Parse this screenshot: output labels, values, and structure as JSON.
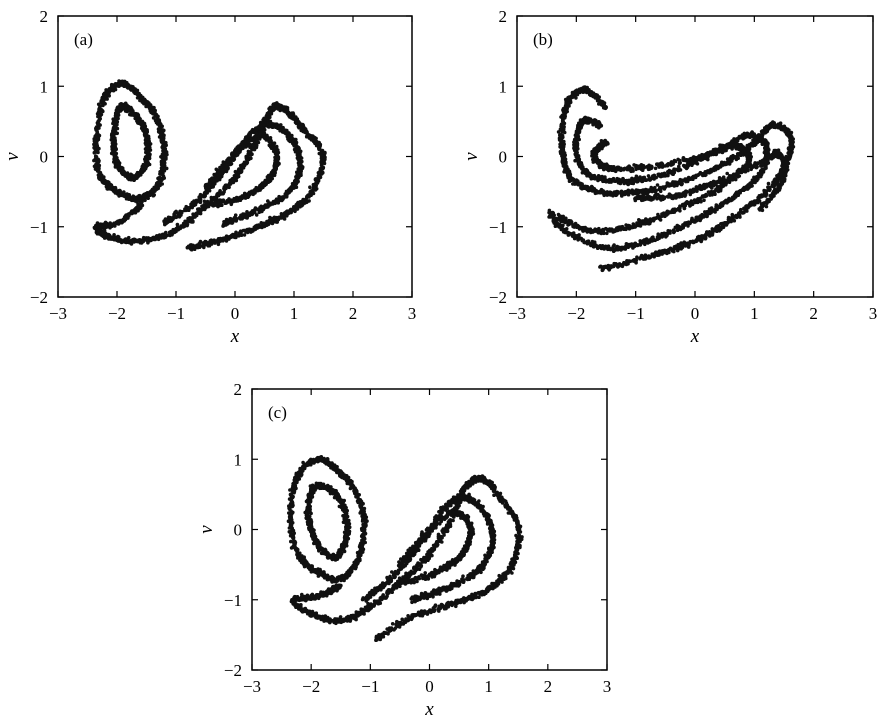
{
  "chart_data": [
    {
      "type": "scatter",
      "panel_label": "(a)",
      "xlabel": "x",
      "ylabel": "v",
      "xlim": [
        -3,
        3
      ],
      "ylim": [
        -2,
        2
      ],
      "xticks": [
        "−3",
        "−2",
        "−1",
        "0",
        "1",
        "2",
        "3"
      ],
      "yticks": [
        "−2",
        "−1",
        "0",
        "1",
        "2"
      ],
      "grid": false,
      "color": "#111111",
      "attractor_curves": [
        {
          "loop": true,
          "points": [
            [
              -1.55,
              0.8
            ],
            [
              -1.9,
              1.04
            ],
            [
              -2.2,
              0.85
            ],
            [
              -2.35,
              0.3
            ],
            [
              -2.3,
              -0.25
            ],
            [
              -2.0,
              -0.5
            ],
            [
              -1.6,
              -0.6
            ],
            [
              -1.3,
              -0.4
            ],
            [
              -1.2,
              0.0
            ],
            [
              -1.3,
              0.5
            ]
          ]
        },
        {
          "loop": true,
          "points": [
            [
              -1.7,
              0.6
            ],
            [
              -1.95,
              0.7
            ],
            [
              -2.05,
              0.3
            ],
            [
              -2.0,
              -0.1
            ],
            [
              -1.75,
              -0.3
            ],
            [
              -1.5,
              -0.1
            ],
            [
              -1.5,
              0.3
            ]
          ]
        },
        {
          "loop": false,
          "points": [
            [
              -1.6,
              -0.7
            ],
            [
              -2.0,
              -0.95
            ],
            [
              -2.35,
              -1.0
            ],
            [
              -2.1,
              -1.15
            ],
            [
              -1.6,
              -1.2
            ],
            [
              -1.0,
              -1.05
            ],
            [
              -0.5,
              -0.7
            ],
            [
              0.0,
              -0.3
            ],
            [
              0.35,
              0.2
            ],
            [
              0.6,
              0.65
            ],
            [
              0.8,
              0.7
            ],
            [
              1.15,
              0.4
            ],
            [
              1.5,
              0.0
            ],
            [
              1.3,
              -0.5
            ],
            [
              0.9,
              -0.8
            ],
            [
              0.4,
              -1.0
            ],
            [
              -0.3,
              -1.2
            ],
            [
              -0.8,
              -1.3
            ]
          ]
        },
        {
          "loop": false,
          "points": [
            [
              -1.2,
              -0.95
            ],
            [
              -0.6,
              -0.6
            ],
            [
              -0.1,
              -0.1
            ],
            [
              0.3,
              0.35
            ],
            [
              0.65,
              0.45
            ],
            [
              1.0,
              0.2
            ],
            [
              1.1,
              -0.2
            ],
            [
              0.85,
              -0.55
            ],
            [
              0.3,
              -0.8
            ],
            [
              -0.2,
              -0.95
            ]
          ]
        },
        {
          "loop": false,
          "points": [
            [
              -0.5,
              -0.45
            ],
            [
              0.0,
              0.05
            ],
            [
              0.45,
              0.3
            ],
            [
              0.7,
              0.05
            ],
            [
              0.6,
              -0.3
            ],
            [
              0.2,
              -0.55
            ],
            [
              -0.4,
              -0.7
            ]
          ]
        }
      ]
    },
    {
      "type": "scatter",
      "panel_label": "(b)",
      "xlabel": "x",
      "ylabel": "v",
      "xlim": [
        -3,
        3
      ],
      "ylim": [
        -2,
        2
      ],
      "xticks": [
        "−3",
        "−2",
        "−1",
        "0",
        "1",
        "2",
        "3"
      ],
      "yticks": [
        "−2",
        "−1",
        "0",
        "1",
        "2"
      ],
      "grid": false,
      "color": "#111111",
      "attractor_curves": [
        {
          "loop": false,
          "points": [
            [
              -1.5,
              0.7
            ],
            [
              -1.85,
              0.95
            ],
            [
              -2.15,
              0.75
            ],
            [
              -2.25,
              0.2
            ],
            [
              -2.1,
              -0.3
            ],
            [
              -1.6,
              -0.5
            ],
            [
              -0.9,
              -0.5
            ],
            [
              -0.2,
              -0.35
            ],
            [
              0.5,
              -0.1
            ],
            [
              1.0,
              0.2
            ],
            [
              1.3,
              0.45
            ],
            [
              1.6,
              0.3
            ],
            [
              1.55,
              -0.1
            ],
            [
              1.2,
              -0.5
            ],
            [
              0.6,
              -0.9
            ],
            [
              0.0,
              -1.2
            ],
            [
              -0.7,
              -1.4
            ],
            [
              -1.6,
              -1.6
            ]
          ]
        },
        {
          "loop": false,
          "points": [
            [
              -1.6,
              0.45
            ],
            [
              -1.9,
              0.5
            ],
            [
              -2.0,
              0.1
            ],
            [
              -1.8,
              -0.25
            ],
            [
              -1.2,
              -0.35
            ],
            [
              -0.5,
              -0.25
            ],
            [
              0.3,
              0.05
            ],
            [
              0.9,
              0.3
            ],
            [
              1.2,
              0.15
            ],
            [
              1.1,
              -0.25
            ],
            [
              0.6,
              -0.6
            ],
            [
              0.0,
              -0.9
            ],
            [
              -0.8,
              -1.2
            ],
            [
              -1.5,
              -1.3
            ],
            [
              -2.2,
              -1.05
            ],
            [
              -2.45,
              -0.8
            ]
          ]
        },
        {
          "loop": false,
          "points": [
            [
              -1.5,
              0.2
            ],
            [
              -1.7,
              0.05
            ],
            [
              -1.5,
              -0.15
            ],
            [
              -0.8,
              -0.15
            ],
            [
              0.1,
              0.0
            ],
            [
              0.7,
              0.15
            ],
            [
              0.9,
              -0.1
            ],
            [
              0.4,
              -0.45
            ],
            [
              -0.3,
              -0.75
            ],
            [
              -1.1,
              -1.0
            ],
            [
              -1.8,
              -1.05
            ],
            [
              -2.3,
              -0.85
            ]
          ]
        },
        {
          "loop": false,
          "points": [
            [
              -1.0,
              -0.6
            ],
            [
              -0.3,
              -0.55
            ],
            [
              0.4,
              -0.35
            ],
            [
              1.2,
              -0.05
            ],
            [
              1.4,
              0.05
            ],
            [
              1.5,
              -0.3
            ],
            [
              1.1,
              -0.75
            ]
          ]
        }
      ]
    },
    {
      "type": "scatter",
      "panel_label": "(c)",
      "xlabel": "x",
      "ylabel": "v",
      "xlim": [
        -3,
        3
      ],
      "ylim": [
        -2,
        2
      ],
      "xticks": [
        "−3",
        "−2",
        "−1",
        "0",
        "1",
        "2",
        "3"
      ],
      "yticks": [
        "−2",
        "−1",
        "0",
        "1",
        "2"
      ],
      "grid": false,
      "color": "#111111",
      "attractor_curves": [
        {
          "loop": true,
          "points": [
            [
              -1.5,
              0.8
            ],
            [
              -1.85,
              1.0
            ],
            [
              -2.2,
              0.8
            ],
            [
              -2.35,
              0.3
            ],
            [
              -2.25,
              -0.3
            ],
            [
              -1.9,
              -0.6
            ],
            [
              -1.5,
              -0.7
            ],
            [
              -1.2,
              -0.4
            ],
            [
              -1.1,
              0.1
            ],
            [
              -1.25,
              0.55
            ]
          ]
        },
        {
          "loop": true,
          "points": [
            [
              -1.65,
              0.55
            ],
            [
              -1.95,
              0.6
            ],
            [
              -2.05,
              0.2
            ],
            [
              -1.9,
              -0.2
            ],
            [
              -1.6,
              -0.4
            ],
            [
              -1.4,
              -0.1
            ],
            [
              -1.45,
              0.3
            ]
          ]
        },
        {
          "loop": false,
          "points": [
            [
              -1.5,
              -0.8
            ],
            [
              -1.9,
              -0.95
            ],
            [
              -2.3,
              -1.0
            ],
            [
              -2.0,
              -1.2
            ],
            [
              -1.5,
              -1.3
            ],
            [
              -1.0,
              -1.1
            ],
            [
              -0.5,
              -0.75
            ],
            [
              0.0,
              -0.35
            ],
            [
              0.4,
              0.2
            ],
            [
              0.6,
              0.6
            ],
            [
              0.9,
              0.72
            ],
            [
              1.2,
              0.45
            ],
            [
              1.5,
              0.05
            ],
            [
              1.4,
              -0.5
            ],
            [
              1.0,
              -0.85
            ],
            [
              0.4,
              -1.05
            ],
            [
              -0.3,
              -1.25
            ],
            [
              -0.9,
              -1.55
            ]
          ]
        },
        {
          "loop": false,
          "points": [
            [
              -1.1,
              -1.0
            ],
            [
              -0.6,
              -0.65
            ],
            [
              -0.1,
              -0.15
            ],
            [
              0.3,
              0.35
            ],
            [
              0.65,
              0.45
            ],
            [
              1.0,
              0.15
            ],
            [
              1.05,
              -0.25
            ],
            [
              0.8,
              -0.6
            ],
            [
              0.25,
              -0.85
            ],
            [
              -0.3,
              -1.0
            ]
          ]
        },
        {
          "loop": false,
          "points": [
            [
              -0.5,
              -0.5
            ],
            [
              0.0,
              0.0
            ],
            [
              0.45,
              0.25
            ],
            [
              0.7,
              0.0
            ],
            [
              0.55,
              -0.35
            ],
            [
              0.15,
              -0.6
            ],
            [
              -0.45,
              -0.75
            ]
          ]
        }
      ]
    }
  ]
}
